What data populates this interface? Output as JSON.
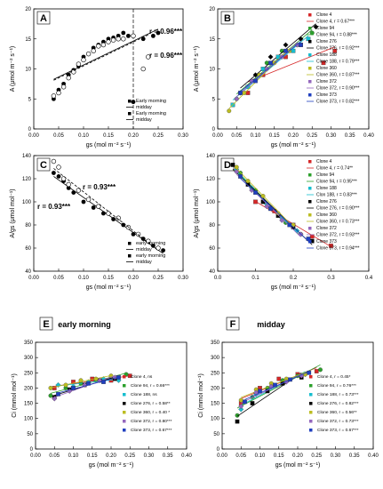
{
  "figure": {
    "panels": [
      {
        "letter": "A",
        "ylabel": "A (μmol m⁻² s⁻¹)",
        "xlabel": "gs (mol m⁻² s⁻¹)",
        "legend": [
          "Early morning",
          "midday",
          "Early morning",
          "midday"
        ],
        "annotations": [
          "r = 0.96***",
          "r = 0.96***"
        ]
      },
      {
        "letter": "B",
        "ylabel": "A (μmol m⁻² s⁻¹)",
        "xlabel": "gs (mol m⁻² s⁻¹)",
        "legend": [
          "Clone 4",
          "Clone 4, r = 0.67***",
          "Clone 94",
          "Clone 94, r = 0.88***",
          "Clone 276",
          "Clone 276, r = 0.92***",
          "Clone 188",
          "Clone 188, r = 0.79***",
          "Clone 360",
          "Clone 360, r = 0.87***",
          "Clone 372",
          "Clone 372, r = 0.90***",
          "Clone 373",
          "Clone 373, r = 0.82***"
        ]
      },
      {
        "letter": "C",
        "ylabel": "A/gs (μmol mol⁻¹)",
        "xlabel": "gs (mol m⁻² s⁻¹)",
        "legend": [
          "early morning",
          "midday",
          "early morning",
          "midday"
        ],
        "annotations": [
          "r = 0.93***",
          "r = 0.93***"
        ]
      },
      {
        "letter": "D",
        "ylabel": "A/gs (μmol mol⁻¹)",
        "xlabel": "gs (mol m⁻² s⁻¹)",
        "legend": [
          "Clone 4",
          "Clone 4, r = 0.74**",
          "Clone 94",
          "Clone 94, r = 0.95***",
          "Clone 188",
          "Clon 188, r = 0.83***",
          "Clone 276",
          "Clone 276, r = 0.90***",
          "Clone 360",
          "Clone 360, r = 0.73***",
          "Clone 372",
          "Clone 372, r = 0.93***",
          "Clone 373",
          "Clone 373, r = 0.94***"
        ]
      },
      {
        "letter": "E",
        "title": "early morning",
        "ylabel": "Ci (mmol mol⁻¹)",
        "xlabel": "gs (mol m⁻² s⁻¹)",
        "legend": [
          "Clone 4, ns",
          "Clone 94, r = 0.66***",
          "Clone 188, ns",
          "Clone 276, r = 0.58**",
          "Clone 360, r = 0.40 *",
          "Clone 372, r = 0.80***",
          "Clone 373, r = 0.67***"
        ]
      },
      {
        "letter": "F",
        "title": "midday",
        "ylabel": "Ci (mmol mol⁻¹)",
        "xlabel": "gs (mol m⁻² s⁻¹)",
        "legend": [
          "Clone 4, r = 0.45*",
          "Clone 94, r = 0.76***",
          "Clone 188, r = 0.73***",
          "Clone 276, r = 0.82***",
          "Clone 360, r = 0.56**",
          "Clone 372, r = 0.73***",
          "Clone 373, r = 0.67***"
        ]
      }
    ]
  },
  "chart_data": [
    {
      "type": "scatter",
      "panel": "A",
      "xlim": [
        0,
        0.3
      ],
      "ylim": [
        0,
        20
      ],
      "xticks": [
        0.0,
        0.05,
        0.1,
        0.15,
        0.2,
        0.25,
        0.3
      ],
      "yticks": [
        0,
        5,
        10,
        15,
        20
      ],
      "series": [
        {
          "name": "Early morning",
          "marker": "filled-circle",
          "x": [
            0.04,
            0.05,
            0.06,
            0.07,
            0.08,
            0.09,
            0.1,
            0.11,
            0.12,
            0.13,
            0.14,
            0.15,
            0.16,
            0.17,
            0.18,
            0.19,
            0.2,
            0.22,
            0.24,
            0.25
          ],
          "y": [
            5.0,
            6.5,
            7.5,
            9.0,
            9.8,
            10.5,
            12.0,
            12.5,
            13.5,
            14.0,
            14.5,
            15.0,
            15.2,
            15.5,
            16.0,
            15.5,
            4.5,
            15.0,
            15.5,
            16.0
          ]
        },
        {
          "name": "midday",
          "marker": "open-circle",
          "x": [
            0.04,
            0.05,
            0.06,
            0.07,
            0.08,
            0.09,
            0.1,
            0.11,
            0.12,
            0.13,
            0.14,
            0.15,
            0.16,
            0.17,
            0.18,
            0.2,
            0.22,
            0.23
          ],
          "y": [
            5.5,
            6.0,
            7.0,
            8.5,
            9.5,
            10.8,
            11.5,
            12.5,
            13.0,
            13.8,
            14.0,
            14.5,
            14.8,
            15.0,
            15.0,
            15.5,
            10.0,
            12.0
          ]
        }
      ],
      "vline_x": 0.2
    },
    {
      "type": "scatter",
      "panel": "B",
      "xlim": [
        0,
        0.4
      ],
      "ylim": [
        0,
        20
      ],
      "xticks": [
        0.0,
        0.05,
        0.1,
        0.15,
        0.2,
        0.25,
        0.3,
        0.35,
        0.4
      ],
      "yticks": [
        0,
        5,
        10,
        15,
        20
      ],
      "series": [
        {
          "name": "Clone 4",
          "color": "#d62728",
          "x": [
            0.08,
            0.12,
            0.18,
            0.22,
            0.28,
            0.31
          ],
          "y": [
            6,
            9,
            12,
            14,
            11,
            13
          ]
        },
        {
          "name": "Clone 94",
          "color": "#2ca02c",
          "x": [
            0.05,
            0.09,
            0.13,
            0.17,
            0.21,
            0.25
          ],
          "y": [
            5,
            8,
            11,
            13,
            14,
            16
          ]
        },
        {
          "name": "Clone 276",
          "color": "#000000",
          "x": [
            0.06,
            0.1,
            0.14,
            0.18,
            0.22,
            0.26
          ],
          "y": [
            6,
            9,
            12,
            14,
            15,
            17
          ]
        },
        {
          "name": "Clone 188",
          "color": "#17becf",
          "x": [
            0.04,
            0.08,
            0.12,
            0.16,
            0.2,
            0.24
          ],
          "y": [
            4,
            7,
            10,
            12,
            13,
            15
          ]
        },
        {
          "name": "Clone 360",
          "color": "#bcbd22",
          "x": [
            0.03,
            0.07,
            0.11,
            0.15,
            0.19
          ],
          "y": [
            3,
            6,
            9,
            11,
            13
          ]
        },
        {
          "name": "Clone 372",
          "color": "#9467bd",
          "x": [
            0.05,
            0.09,
            0.13,
            0.17,
            0.21
          ],
          "y": [
            5,
            8,
            10,
            12,
            14
          ]
        },
        {
          "name": "Clone 373",
          "color": "#1f3fbf",
          "x": [
            0.06,
            0.1,
            0.14,
            0.18,
            0.22
          ],
          "y": [
            6,
            8,
            11,
            13,
            14
          ]
        }
      ]
    },
    {
      "type": "scatter",
      "panel": "C",
      "xlim": [
        0,
        0.3
      ],
      "ylim": [
        40,
        140
      ],
      "xticks": [
        0.0,
        0.05,
        0.1,
        0.15,
        0.2,
        0.25,
        0.3
      ],
      "yticks": [
        40,
        60,
        80,
        100,
        120,
        140
      ],
      "series": [
        {
          "name": "early morning",
          "marker": "filled-circle",
          "x": [
            0.04,
            0.05,
            0.06,
            0.07,
            0.08,
            0.1,
            0.12,
            0.14,
            0.16,
            0.18,
            0.2,
            0.22,
            0.24,
            0.26
          ],
          "y": [
            125,
            122,
            118,
            112,
            108,
            100,
            95,
            90,
            85,
            80,
            72,
            68,
            62,
            58
          ]
        },
        {
          "name": "midday",
          "marker": "open-circle",
          "x": [
            0.04,
            0.05,
            0.06,
            0.07,
            0.09,
            0.11,
            0.13,
            0.15,
            0.17,
            0.19,
            0.21,
            0.23,
            0.25
          ],
          "y": [
            135,
            130,
            120,
            115,
            110,
            102,
            96,
            90,
            86,
            78,
            72,
            66,
            60
          ]
        }
      ]
    },
    {
      "type": "scatter",
      "panel": "D",
      "xlim": [
        0,
        0.4
      ],
      "ylim": [
        40,
        140
      ],
      "xticks": [
        0.0,
        0.1,
        0.2,
        0.3,
        0.4
      ],
      "yticks": [
        40,
        60,
        80,
        100,
        120,
        140
      ],
      "series": [
        {
          "name": "Clone 4",
          "color": "#d62728",
          "x": [
            0.1,
            0.15,
            0.2,
            0.25,
            0.3
          ],
          "y": [
            100,
            92,
            80,
            70,
            62
          ]
        },
        {
          "name": "Clone 94",
          "color": "#2ca02c",
          "x": [
            0.06,
            0.1,
            0.14,
            0.18,
            0.22
          ],
          "y": [
            125,
            110,
            95,
            82,
            72
          ]
        },
        {
          "name": "Clone 188",
          "color": "#17becf",
          "x": [
            0.05,
            0.09,
            0.13,
            0.17,
            0.21
          ],
          "y": [
            128,
            112,
            98,
            86,
            75
          ]
        },
        {
          "name": "Clone 276",
          "color": "#000000",
          "x": [
            0.04,
            0.08,
            0.12,
            0.16,
            0.2,
            0.25
          ],
          "y": [
            132,
            115,
            100,
            88,
            78,
            66
          ]
        },
        {
          "name": "Clone 360",
          "color": "#bcbd22",
          "x": [
            0.05,
            0.08,
            0.12,
            0.16,
            0.2
          ],
          "y": [
            130,
            118,
            105,
            90,
            80
          ]
        },
        {
          "name": "Clone 372",
          "color": "#9467bd",
          "x": [
            0.05,
            0.09,
            0.13,
            0.17,
            0.22
          ],
          "y": [
            126,
            110,
            96,
            84,
            72
          ]
        },
        {
          "name": "Clone 373",
          "color": "#1f3fbf",
          "x": [
            0.06,
            0.1,
            0.14,
            0.19,
            0.24
          ],
          "y": [
            122,
            108,
            94,
            80,
            68
          ]
        }
      ]
    },
    {
      "type": "scatter",
      "panel": "E",
      "xlim": [
        0,
        0.4
      ],
      "ylim": [
        0,
        350
      ],
      "xticks": [
        0.0,
        0.05,
        0.1,
        0.15,
        0.2,
        0.25,
        0.3,
        0.35,
        0.4
      ],
      "yticks": [
        0,
        50,
        100,
        150,
        200,
        250,
        300,
        350
      ],
      "series": [
        {
          "name": "Clone 4, ns",
          "color": "#d62728",
          "x": [
            0.05,
            0.1,
            0.15,
            0.2,
            0.25
          ],
          "y": [
            200,
            220,
            230,
            225,
            240
          ]
        },
        {
          "name": "Clone 94, r = 0.66***",
          "color": "#2ca02c",
          "x": [
            0.04,
            0.08,
            0.12,
            0.16,
            0.2,
            0.24
          ],
          "y": [
            175,
            200,
            215,
            225,
            235,
            245
          ]
        },
        {
          "name": "Clone 188, ns",
          "color": "#17becf",
          "x": [
            0.06,
            0.1,
            0.14,
            0.18,
            0.22
          ],
          "y": [
            210,
            205,
            220,
            230,
            225
          ]
        },
        {
          "name": "Clone 276, r = 0.58**",
          "color": "#000000",
          "x": [
            0.05,
            0.09,
            0.13,
            0.17,
            0.21
          ],
          "y": [
            170,
            195,
            210,
            225,
            230
          ]
        },
        {
          "name": "Clone 360, r = 0.40 *",
          "color": "#bcbd22",
          "x": [
            0.04,
            0.08,
            0.12,
            0.16,
            0.2
          ],
          "y": [
            200,
            210,
            225,
            230,
            240
          ]
        },
        {
          "name": "Clone 372, r = 0.80***",
          "color": "#9467bd",
          "x": [
            0.05,
            0.09,
            0.13,
            0.17,
            0.21
          ],
          "y": [
            165,
            190,
            210,
            225,
            235
          ]
        },
        {
          "name": "Clone 373, r = 0.67***",
          "color": "#1f3fbf",
          "x": [
            0.06,
            0.1,
            0.14,
            0.18,
            0.22
          ],
          "y": [
            180,
            200,
            215,
            220,
            235
          ]
        }
      ]
    },
    {
      "type": "scatter",
      "panel": "F",
      "xlim": [
        0,
        0.4
      ],
      "ylim": [
        0,
        350
      ],
      "xticks": [
        0.0,
        0.05,
        0.1,
        0.15,
        0.2,
        0.25,
        0.3,
        0.35,
        0.4
      ],
      "yticks": [
        0,
        50,
        100,
        150,
        200,
        250,
        300,
        350
      ],
      "series": [
        {
          "name": "Clone 4, r = 0.45*",
          "color": "#d62728",
          "x": [
            0.05,
            0.1,
            0.15,
            0.2,
            0.25
          ],
          "y": [
            150,
            200,
            230,
            245,
            255
          ]
        },
        {
          "name": "Clone 94, r = 0.76***",
          "color": "#2ca02c",
          "x": [
            0.04,
            0.08,
            0.12,
            0.16,
            0.2,
            0.26
          ],
          "y": [
            110,
            170,
            200,
            225,
            240,
            260
          ]
        },
        {
          "name": "Clone 188, r = 0.73***",
          "color": "#17becf",
          "x": [
            0.05,
            0.09,
            0.13,
            0.17,
            0.22
          ],
          "y": [
            130,
            180,
            205,
            225,
            245
          ]
        },
        {
          "name": "Clone 276, r = 0.82***",
          "color": "#000000",
          "x": [
            0.04,
            0.08,
            0.12,
            0.16,
            0.21
          ],
          "y": [
            90,
            150,
            190,
            215,
            235
          ]
        },
        {
          "name": "Clone 360, r = 0.56**",
          "color": "#bcbd22",
          "x": [
            0.05,
            0.09,
            0.13,
            0.17,
            0.22
          ],
          "y": [
            160,
            195,
            215,
            230,
            245
          ]
        },
        {
          "name": "Clone 372, r = 0.73***",
          "color": "#9467bd",
          "x": [
            0.05,
            0.09,
            0.13,
            0.17,
            0.21
          ],
          "y": [
            140,
            185,
            205,
            220,
            240
          ]
        },
        {
          "name": "Clone 373, r = 0.67***",
          "color": "#1f3fbf",
          "x": [
            0.06,
            0.1,
            0.14,
            0.18,
            0.23
          ],
          "y": [
            155,
            190,
            210,
            228,
            250
          ]
        }
      ]
    }
  ]
}
